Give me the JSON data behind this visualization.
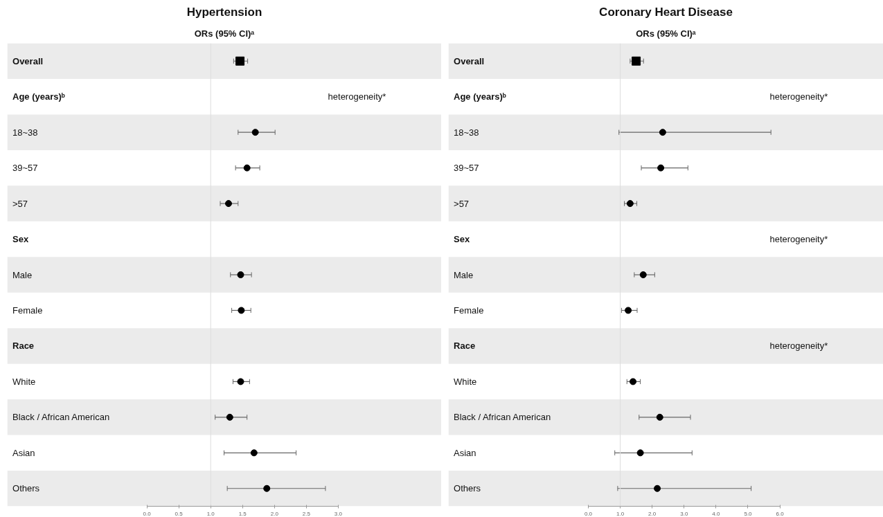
{
  "chart_data": [
    {
      "type": "scatter",
      "orientation": "horizontal",
      "title": "Hypertension",
      "subtitle": "ORs (95% CI)ᵃ",
      "categories": [
        "Overall",
        "Age (years)ᵇ",
        "18~38",
        "39~57",
        ">57",
        "Sex",
        "Male",
        "Female",
        "Race",
        "White",
        "Black / African American",
        "Asian",
        "Others"
      ],
      "series": [
        {
          "marker": "square",
          "color": "#000000",
          "values": [
            1.46,
            null,
            null,
            null,
            null,
            null,
            null,
            null,
            null,
            null,
            null,
            null,
            null
          ],
          "errors": [
            [
              1.36,
              1.58
            ],
            null,
            null,
            null,
            null,
            null,
            null,
            null,
            null,
            null,
            null,
            null,
            null
          ]
        },
        {
          "marker": "circle",
          "color": "#000000",
          "values": [
            null,
            null,
            1.7,
            1.57,
            1.28,
            null,
            1.47,
            1.48,
            null,
            1.47,
            1.3,
            1.68,
            1.88
          ],
          "errors": [
            null,
            null,
            [
              1.43,
              2.01
            ],
            [
              1.39,
              1.77
            ],
            [
              1.15,
              1.43
            ],
            null,
            [
              1.31,
              1.64
            ],
            [
              1.33,
              1.63
            ],
            null,
            [
              1.35,
              1.61
            ],
            [
              1.07,
              1.57
            ],
            [
              1.21,
              2.34
            ],
            [
              1.26,
              2.8
            ]
          ]
        }
      ],
      "xlim": [
        0,
        3
      ],
      "xticks": [
        {
          "value": 0,
          "label": "0.0"
        },
        {
          "value": 0.5,
          "label": "0.5"
        },
        {
          "value": 1,
          "label": "1.0"
        },
        {
          "value": 1.5,
          "label": "1.5"
        },
        {
          "value": 2,
          "label": "2.0"
        },
        {
          "value": 2.5,
          "label": "2.5"
        },
        {
          "value": 3,
          "label": "3.0"
        }
      ],
      "ref_lines": [
        {
          "axis": "x",
          "value": 1,
          "color": "#dddddd"
        }
      ],
      "annotations": [
        "heterogeneity*"
      ]
    },
    {
      "type": "scatter",
      "orientation": "horizontal",
      "title": "Coronary Heart Disease",
      "subtitle": "ORs (95% CI)ᵃ",
      "categories": [
        "Overall",
        "Age (years)ᵇ",
        "18~38",
        "39~57",
        ">57",
        "Sex",
        "Male",
        "Female",
        "Race",
        "White",
        "Black / African American",
        "Asian",
        "Others"
      ],
      "series": [
        {
          "marker": "square",
          "color": "#000000",
          "values": [
            1.5,
            null,
            null,
            null,
            null,
            null,
            null,
            null,
            null,
            null,
            null,
            null,
            null
          ],
          "errors": [
            [
              1.31,
              1.73
            ],
            null,
            null,
            null,
            null,
            null,
            null,
            null,
            null,
            null,
            null,
            null,
            null
          ]
        },
        {
          "marker": "circle",
          "color": "#000000",
          "values": [
            null,
            null,
            2.33,
            2.27,
            1.31,
            null,
            1.72,
            1.25,
            null,
            1.4,
            2.24,
            1.63,
            2.16
          ],
          "errors": [
            null,
            null,
            [
              0.96,
              5.72
            ],
            [
              1.66,
              3.12
            ],
            [
              1.13,
              1.52
            ],
            null,
            [
              1.44,
              2.08
            ],
            [
              1.04,
              1.53
            ],
            null,
            [
              1.21,
              1.63
            ],
            [
              1.59,
              3.2
            ],
            [
              0.83,
              3.25
            ],
            [
              0.92,
              5.1
            ]
          ]
        }
      ],
      "xlim": [
        0,
        6
      ],
      "xticks": [
        {
          "value": 0,
          "label": "0.0"
        },
        {
          "value": 1,
          "label": "1.0"
        },
        {
          "value": 2,
          "label": "2.0"
        },
        {
          "value": 3,
          "label": "3.0"
        },
        {
          "value": 4,
          "label": "4.0"
        },
        {
          "value": 5,
          "label": "5.0"
        },
        {
          "value": 6,
          "label": "6.0"
        }
      ],
      "ref_lines": [
        {
          "axis": "x",
          "value": 1,
          "color": "#dddddd"
        }
      ],
      "annotations": [
        "heterogeneity*",
        "heterogeneity*",
        "heterogeneity*"
      ]
    }
  ]
}
